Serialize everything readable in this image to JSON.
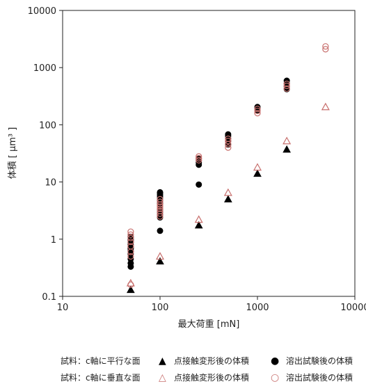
{
  "chart_data": {
    "type": "scatter",
    "xlabel": "最大荷重 [mN]",
    "ylabel": "体積 [ μm³ ]",
    "x_scale": "log",
    "y_scale": "log",
    "xlim": [
      10,
      10000
    ],
    "ylim": [
      0.1,
      10000
    ],
    "x_ticks": [
      "10",
      "100",
      "1000",
      "10000"
    ],
    "y_ticks": [
      "0.1",
      "1",
      "10",
      "100",
      "1000",
      "10000"
    ],
    "grid": false,
    "legend_placement": "bottom",
    "series": [
      {
        "name": "点接触変形後の体積",
        "group": "試料：c軸に平行な面",
        "marker": "triangle-filled",
        "color": "#000000",
        "x": [
          50,
          100,
          250,
          500,
          1000,
          2000
        ],
        "y": [
          0.13,
          0.41,
          1.75,
          5.0,
          14,
          37
        ]
      },
      {
        "name": "溶出試験後の体積",
        "group": "試料：c軸に平行な面",
        "marker": "circle-filled",
        "color": "#000000",
        "x": [
          50,
          50,
          50,
          50,
          50,
          50,
          50,
          50,
          50,
          50,
          50,
          50,
          100,
          100,
          100,
          100,
          100,
          100,
          100,
          100,
          100,
          100,
          100,
          100,
          100,
          250,
          250,
          250,
          250,
          250,
          500,
          500,
          500,
          500,
          500,
          1000,
          1000,
          1000,
          2000,
          2000,
          2000,
          2000
        ],
        "y": [
          0.33,
          0.38,
          0.45,
          0.55,
          0.62,
          0.68,
          0.72,
          0.8,
          0.88,
          0.95,
          1.0,
          1.1,
          1.4,
          2.4,
          2.7,
          3.0,
          3.3,
          3.8,
          4.2,
          4.7,
          5.2,
          5.6,
          6.0,
          6.4,
          6.6,
          9.0,
          20,
          22,
          24,
          26,
          45,
          52,
          58,
          64,
          68,
          180,
          195,
          205,
          420,
          470,
          530,
          590
        ]
      },
      {
        "name": "点接触変形後の体積",
        "group": "試料：c軸に垂直な面",
        "marker": "triangle-open",
        "color": "#c8706e",
        "x": [
          50,
          100,
          250,
          500,
          1000,
          2000,
          5000
        ],
        "y": [
          0.17,
          0.5,
          2.2,
          6.5,
          18,
          52,
          205
        ]
      },
      {
        "name": "溶出試験後の体積",
        "group": "試料：c軸に垂直な面",
        "marker": "circle-open",
        "color": "#c8706e",
        "x": [
          50,
          50,
          50,
          50,
          50,
          50,
          50,
          50,
          100,
          100,
          100,
          100,
          100,
          100,
          100,
          100,
          250,
          250,
          250,
          500,
          500,
          500,
          500,
          1000,
          1000,
          1000,
          2000,
          2000,
          2000,
          5000,
          5000
        ],
        "y": [
          0.16,
          0.5,
          0.6,
          0.75,
          0.9,
          1.05,
          1.2,
          1.35,
          2.5,
          2.8,
          3.1,
          3.4,
          3.7,
          4.0,
          4.5,
          5.0,
          24,
          26,
          28,
          40,
          46,
          52,
          57,
          160,
          175,
          190,
          430,
          480,
          520,
          2100,
          2350
        ]
      }
    ]
  },
  "legend": {
    "row1": {
      "group_label": "試料：c軸に平行な面",
      "tri_label": "点接触変形後の体積",
      "circ_label": "溶出試験後の体積",
      "color": "#000000"
    },
    "row2": {
      "group_label": "試料：c軸に垂直な面",
      "tri_label": "点接触変形後の体積",
      "circ_label": "溶出試験後の体積",
      "color": "#c8706e"
    }
  }
}
